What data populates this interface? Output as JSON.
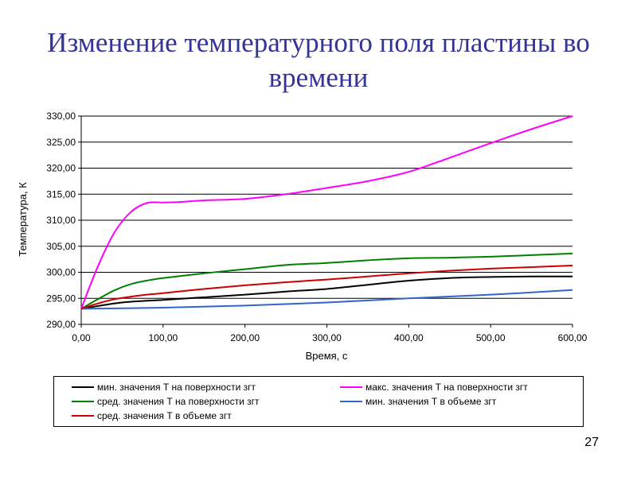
{
  "slide": {
    "title": "Изменение температурного поля пластины во времени",
    "page_number": "27"
  },
  "chart_data": {
    "type": "line",
    "title": "",
    "xlabel": "Время, с",
    "ylabel": "Температура, К",
    "xlim": [
      0,
      600
    ],
    "ylim": [
      290,
      330
    ],
    "x_ticks": [
      "0,00",
      "100,00",
      "200,00",
      "300,00",
      "400,00",
      "500,00",
      "600,00"
    ],
    "y_ticks": [
      "290,00",
      "295,00",
      "300,00",
      "305,00",
      "310,00",
      "315,00",
      "320,00",
      "325,00",
      "330,00"
    ],
    "grid": "horizontal",
    "legend_position": "bottom",
    "series": [
      {
        "name": "мин. значения Т на поверхности згт",
        "color": "#000000",
        "x": [
          0,
          50,
          100,
          150,
          200,
          250,
          300,
          350,
          400,
          450,
          500,
          550,
          600
        ],
        "y": [
          293.0,
          294.2,
          294.7,
          295.2,
          295.7,
          296.3,
          296.8,
          297.6,
          298.4,
          298.9,
          299.1,
          299.2,
          299.2
        ]
      },
      {
        "name": "макс. значения Т на поверхности згт",
        "color": "#ff00ff",
        "x": [
          0,
          20,
          40,
          60,
          80,
          100,
          120,
          150,
          200,
          250,
          300,
          350,
          400,
          450,
          500,
          550,
          600
        ],
        "y": [
          293.0,
          301.0,
          307.5,
          311.5,
          313.3,
          313.4,
          313.5,
          313.8,
          314.1,
          315.0,
          316.2,
          317.5,
          319.3,
          322.0,
          324.8,
          327.5,
          330.0
        ]
      },
      {
        "name": "сред. значения Т на поверхности згт",
        "color": "#008000",
        "x": [
          0,
          20,
          40,
          60,
          80,
          100,
          150,
          200,
          250,
          300,
          350,
          400,
          450,
          500,
          550,
          600
        ],
        "y": [
          293.0,
          294.8,
          296.5,
          297.7,
          298.4,
          298.9,
          299.8,
          300.6,
          301.4,
          301.8,
          302.3,
          302.7,
          302.8,
          303.0,
          303.3,
          303.6
        ]
      },
      {
        "name": "мин. значения Т в объеме згт",
        "color": "#3366cc",
        "x": [
          0,
          100,
          200,
          300,
          400,
          500,
          600
        ],
        "y": [
          293.0,
          293.2,
          293.6,
          294.2,
          295.0,
          295.7,
          296.6
        ]
      },
      {
        "name": "сред. значения Т в объеме згт",
        "color": "#cc0000",
        "x": [
          0,
          20,
          40,
          60,
          80,
          100,
          150,
          200,
          250,
          300,
          350,
          400,
          450,
          500,
          550,
          600
        ],
        "y": [
          293.0,
          294.0,
          294.8,
          295.3,
          295.7,
          296.0,
          296.8,
          297.5,
          298.1,
          298.6,
          299.2,
          299.8,
          300.3,
          300.7,
          301.0,
          301.3
        ]
      }
    ]
  }
}
